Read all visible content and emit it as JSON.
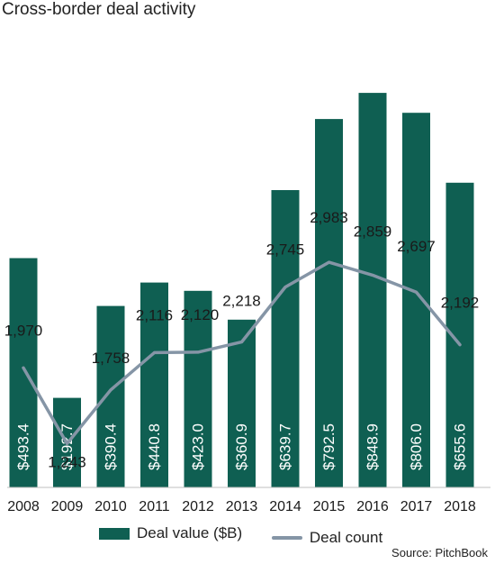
{
  "title": "Cross-border deal activity",
  "source": "Source: PitchBook",
  "colors": {
    "bar": "#0f5f52",
    "line": "#8595a6",
    "bar_label": "#ffffff"
  },
  "chart_data": {
    "type": "bar",
    "title": "Cross-border deal activity",
    "categories": [
      "2008",
      "2009",
      "2010",
      "2011",
      "2012",
      "2013",
      "2014",
      "2015",
      "2016",
      "2017",
      "2018"
    ],
    "series": [
      {
        "name": "Deal value ($B)",
        "type": "bar",
        "values": [
          493.4,
          192.7,
          390.4,
          440.8,
          423.0,
          360.9,
          639.7,
          792.5,
          848.9,
          806.0,
          655.6
        ],
        "labels": [
          "$493.4",
          "$192.7",
          "$390.4",
          "$440.8",
          "$423.0",
          "$360.9",
          "$639.7",
          "$792.5",
          "$848.9",
          "$806.0",
          "$655.6"
        ]
      },
      {
        "name": "Deal count",
        "type": "line",
        "values": [
          1970,
          1243,
          1758,
          2116,
          2120,
          2218,
          2745,
          2983,
          2859,
          2697,
          2192
        ],
        "labels": [
          "1,970",
          "1,243",
          "1,758",
          "2,116",
          "2,120",
          "2,218",
          "2,745",
          "2,983",
          "2,859",
          "2,697",
          "2,192"
        ]
      }
    ],
    "axes": {
      "value_range": [
        0,
        1000
      ],
      "count_range_approx": [
        500,
        3500
      ]
    },
    "grid": false,
    "legend": "bottom"
  }
}
